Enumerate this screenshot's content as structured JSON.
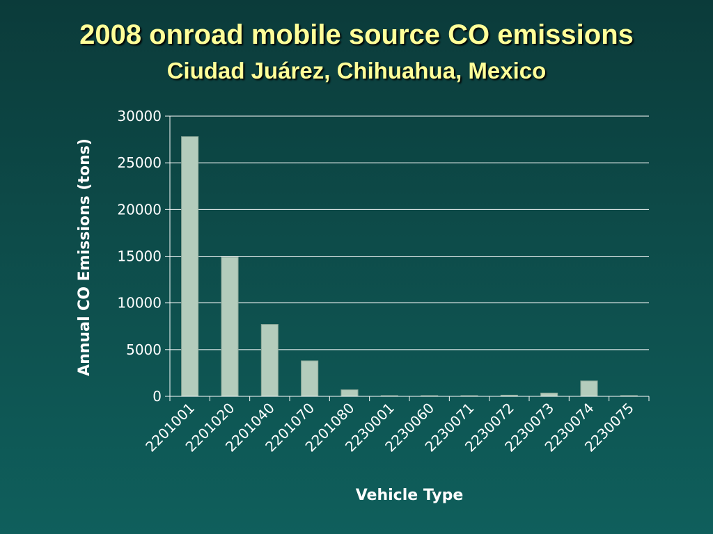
{
  "slide": {
    "title": "2008 onroad mobile source CO emissions",
    "subtitle": "Ciudad Juárez, Chihuahua, Mexico"
  },
  "chart_data": {
    "type": "bar",
    "title": "2008 onroad mobile source CO emissions",
    "subtitle": "Ciudad Juárez, Chihuahua, Mexico",
    "xlabel": "Vehicle Type",
    "ylabel": "Annual CO Emissions (tons)",
    "categories": [
      "2201001",
      "2201020",
      "2201040",
      "2201070",
      "2201080",
      "2230001",
      "2230060",
      "2230071",
      "2230072",
      "2230073",
      "2230074",
      "2230075"
    ],
    "values": [
      27800,
      14900,
      7700,
      3800,
      700,
      20,
      60,
      30,
      120,
      350,
      1650,
      80
    ],
    "ylim": [
      0,
      30000
    ],
    "yticks": [
      "0",
      "5000",
      "10000",
      "15000",
      "20000",
      "25000",
      "30000"
    ],
    "grid": true,
    "legend": "none",
    "colors": {
      "bar": "#b4ccbc",
      "bar_stroke": "#8aa697",
      "grid": "#ffffff",
      "text": "#ffffff",
      "title": "#ffff99"
    }
  }
}
